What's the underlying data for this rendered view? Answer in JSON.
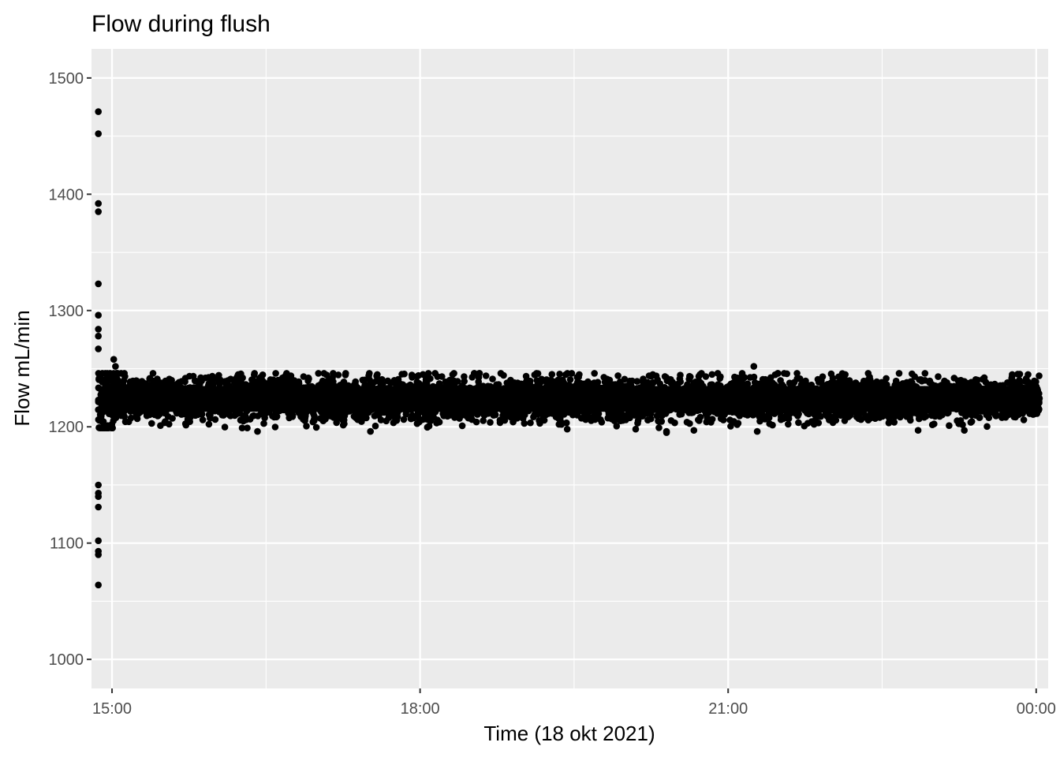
{
  "chart_data": {
    "type": "scatter",
    "title": "Flow during flush",
    "xlabel": "Time (18 okt 2021)",
    "ylabel": "Flow mL/min",
    "x_axis_kind": "time-of-day",
    "x_range": [
      "14:48",
      "00:07"
    ],
    "ylim": [
      975,
      1525
    ],
    "x_ticks": [
      {
        "value": "15:00",
        "label": "15:00"
      },
      {
        "value": "18:00",
        "label": "18:00"
      },
      {
        "value": "21:00",
        "label": "21:00"
      },
      {
        "value": "00:00",
        "label": "00:00"
      }
    ],
    "y_ticks": [
      1000,
      1100,
      1200,
      1300,
      1400,
      1500
    ],
    "grid": true,
    "legend": "none",
    "point_color": "#000000",
    "panel_background": "#ebebeb",
    "grid_color": "#ffffff",
    "outliers": [
      {
        "x": "14:52",
        "y": 1471
      },
      {
        "x": "14:52",
        "y": 1452
      },
      {
        "x": "14:52",
        "y": 1392
      },
      {
        "x": "14:52",
        "y": 1385
      },
      {
        "x": "14:52",
        "y": 1323
      },
      {
        "x": "14:52",
        "y": 1296
      },
      {
        "x": "14:52",
        "y": 1284
      },
      {
        "x": "14:52",
        "y": 1278
      },
      {
        "x": "14:52",
        "y": 1267
      },
      {
        "x": "14:52",
        "y": 1150
      },
      {
        "x": "14:52",
        "y": 1143
      },
      {
        "x": "14:52",
        "y": 1140
      },
      {
        "x": "14:52",
        "y": 1131
      },
      {
        "x": "14:52",
        "y": 1102
      },
      {
        "x": "14:52",
        "y": 1093
      },
      {
        "x": "14:52",
        "y": 1090
      },
      {
        "x": "14:52",
        "y": 1064
      },
      {
        "x": "15:01",
        "y": 1258
      },
      {
        "x": "15:02",
        "y": 1252
      },
      {
        "x": "16:42",
        "y": 1246
      },
      {
        "x": "17:35",
        "y": 1245
      },
      {
        "x": "18:19",
        "y": 1245
      },
      {
        "x": "19:33",
        "y": 1245
      },
      {
        "x": "20:16",
        "y": 1245
      },
      {
        "x": "21:15",
        "y": 1252
      },
      {
        "x": "22:55",
        "y": 1246
      },
      {
        "x": "23:46",
        "y": 1245
      },
      {
        "x": "17:31",
        "y": 1196
      },
      {
        "x": "19:26",
        "y": 1198
      },
      {
        "x": "20:24",
        "y": 1195
      },
      {
        "x": "20:24",
        "y": 1196
      },
      {
        "x": "20:40",
        "y": 1197
      },
      {
        "x": "21:17",
        "y": 1196
      },
      {
        "x": "22:51",
        "y": 1197
      },
      {
        "x": "23:18",
        "y": 1197
      },
      {
        "x": "16:16",
        "y": 1199
      },
      {
        "x": "16:25",
        "y": 1196
      },
      {
        "x": "20:06",
        "y": 1198
      }
    ],
    "main_band": {
      "x_start": "14:52",
      "x_end": "00:02",
      "y_typical_low": 1205,
      "y_typical_high": 1242,
      "y_center": 1224
    }
  }
}
